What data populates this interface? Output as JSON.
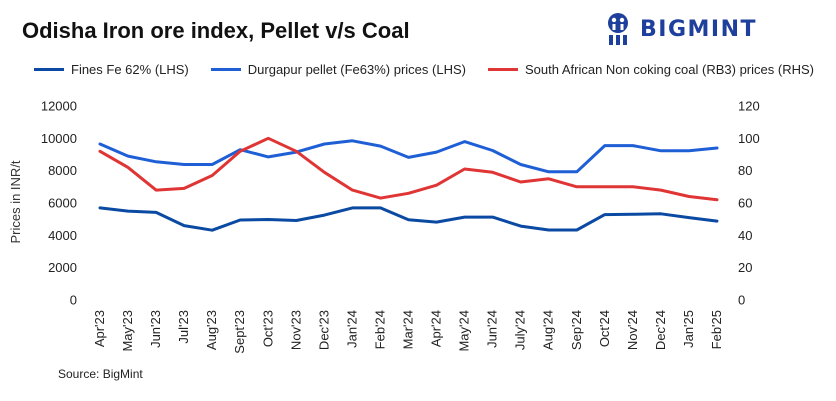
{
  "brand": {
    "name": "BIGMINT"
  },
  "chart_data": {
    "type": "line",
    "title": "Odisha Iron ore index, Pellet v/s Coal",
    "categories": [
      "Apr'23",
      "May'23",
      "Jun'23",
      "Jul'23",
      "Aug'23",
      "Sept'23",
      "Oct'23",
      "Nov'23",
      "Dec'23",
      "Jan'24",
      "Feb'24",
      "Mar'24",
      "Apr'24",
      "May'24",
      "Jun'24",
      "July'24",
      "Aug'24",
      "Sep'24",
      "Oct'24",
      "Nov'24",
      "Dec'24",
      "Jan'25",
      "Feb'25"
    ],
    "series": [
      {
        "name": "Fines Fe 62% (LHS)",
        "axis": "left",
        "color": "#0b4aa2",
        "values": [
          5700,
          5500,
          5420,
          4600,
          4320,
          4950,
          4980,
          4920,
          5250,
          5700,
          5700,
          4960,
          4820,
          5130,
          5130,
          4570,
          4330,
          4330,
          5280,
          5300,
          5330,
          5100,
          4880
        ]
      },
      {
        "name": "Durgapur pellet (Fe63%) prices (LHS)",
        "axis": "left",
        "color": "#1f5fd6",
        "values": [
          9650,
          8900,
          8550,
          8380,
          8380,
          9300,
          8850,
          9150,
          9650,
          9850,
          9520,
          8820,
          9150,
          9800,
          9250,
          8380,
          7930,
          7930,
          9550,
          9550,
          9230,
          9230,
          9400
        ]
      },
      {
        "name": "South African Non coking coal (RB3) prices (RHS)",
        "axis": "right",
        "color": "#e03535",
        "values": [
          92,
          82,
          68,
          69,
          77,
          92,
          100,
          92,
          79,
          68,
          63,
          66,
          71,
          81,
          79,
          73,
          75,
          70,
          70,
          70,
          68,
          64,
          62
        ]
      }
    ],
    "y_left": {
      "label": "Prices in INR/t",
      "ticks": [
        "0",
        "2000",
        "4000",
        "6000",
        "8000",
        "10000",
        "12000"
      ],
      "min": 0,
      "max": 12000
    },
    "y_right": {
      "label": "",
      "ticks": [
        "0",
        "20",
        "40",
        "60",
        "80",
        "100",
        "120"
      ],
      "min": 0,
      "max": 120
    },
    "grid": false,
    "legend_position": "top"
  },
  "source": "Source: BigMint"
}
